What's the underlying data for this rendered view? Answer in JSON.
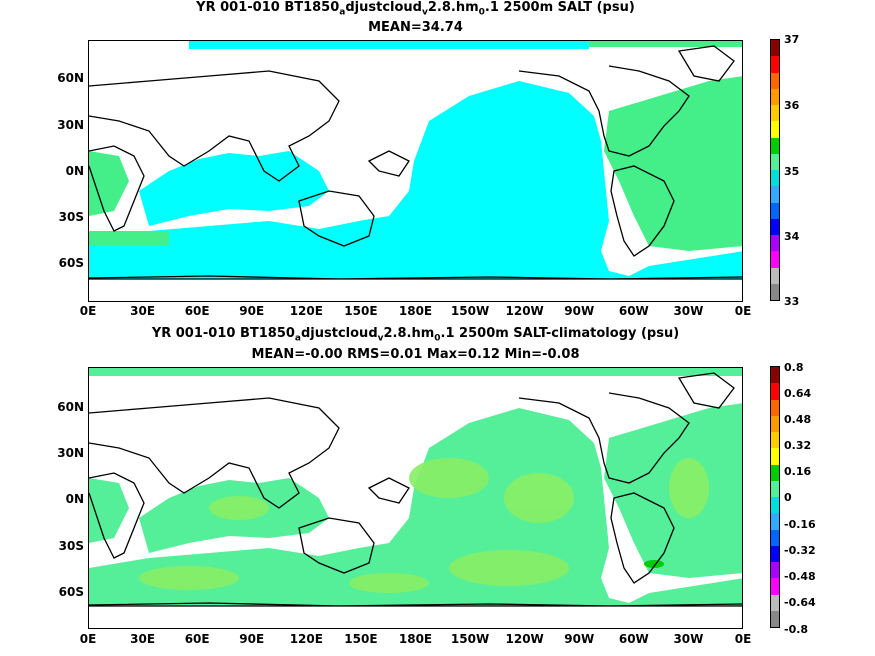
{
  "panels": [
    {
      "title_parts": [
        "YR 001-010 BT1850",
        "a",
        "djustcloud",
        "v",
        "2.8.hm",
        "0",
        ".1 2500m SALT (psu)"
      ],
      "subtitle": "MEAN=34.74",
      "colorbar_ticks": [
        "37",
        "36",
        "35",
        "34",
        "33"
      ],
      "colorbar_colors": [
        "#888888",
        "#bbbbbb",
        "#ff00ff",
        "#aa00ff",
        "#0000ff",
        "#0066ff",
        "#33aaff",
        "#00dddd",
        "#55ee99",
        "#00cc00",
        "#ffff00",
        "#ffcc00",
        "#ff9900",
        "#ff6600",
        "#ff0000",
        "#880000"
      ],
      "ocean_color": "#00ffff",
      "atlantic_color": "#44ee88"
    },
    {
      "title_parts": [
        "YR 001-010 BT1850",
        "a",
        "djustcloud",
        "v",
        "2.8.hm",
        "0",
        ".1 2500m SALT-climatology (psu)"
      ],
      "subtitle": "MEAN=-0.00   RMS=0.01   Max=0.12   Min=-0.08",
      "colorbar_ticks": [
        "0.8",
        "0.64",
        "0.48",
        "0.32",
        "0.16",
        "0",
        "-0.16",
        "-0.32",
        "-0.48",
        "-0.64",
        "-0.8"
      ],
      "colorbar_colors": [
        "#888888",
        "#bbbbbb",
        "#ff00ff",
        "#aa00ff",
        "#0000ff",
        "#0066ff",
        "#33aaff",
        "#00dddd",
        "#55ee99",
        "#00cc00",
        "#ffff00",
        "#ffcc00",
        "#ff9900",
        "#ff6600",
        "#ff0000",
        "#880000"
      ],
      "ocean_color": "#55ee99",
      "atlantic_color": "#55ee99"
    }
  ],
  "lat_labels": [
    "60N",
    "30N",
    "0N",
    "30S",
    "60S"
  ],
  "lon_labels": [
    "0E",
    "30E",
    "60E",
    "90E",
    "120E",
    "150E",
    "180E",
    "150W",
    "120W",
    "90W",
    "60W",
    "30W",
    "0E"
  ]
}
